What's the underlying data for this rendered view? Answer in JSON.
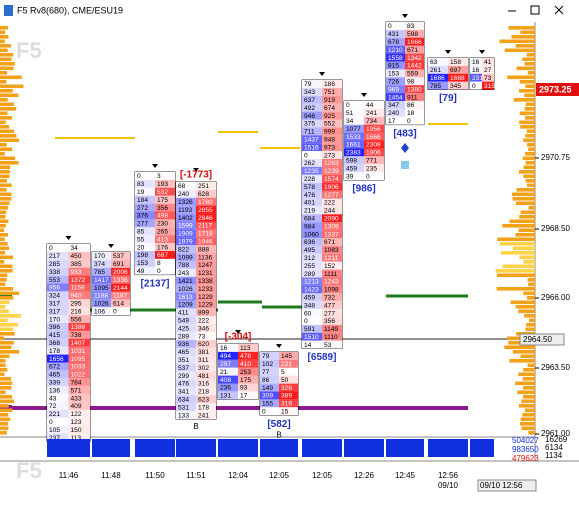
{
  "window": {
    "title": "F5 Rv8(680), CME/ESU19",
    "watermark": "F5"
  },
  "columns": [
    {
      "time": "11:46",
      "delta": "[1899]",
      "rows": [
        [
          0,
          34
        ],
        [
          217,
          450
        ],
        [
          285,
          385
        ],
        [
          338,
          933
        ],
        [
          553,
          1372
        ],
        [
          956,
          1159
        ],
        [
          324,
          940
        ],
        [
          317,
          295
        ],
        [
          317,
          216
        ],
        [
          170,
          556
        ],
        [
          396,
          1388
        ],
        [
          415,
          738
        ],
        [
          368,
          1407
        ],
        [
          178,
          1031
        ],
        [
          1656,
          1095
        ],
        [
          672,
          1033
        ],
        [
          465,
          1022
        ],
        [
          339,
          784
        ],
        [
          136,
          571
        ],
        [
          43,
          433
        ],
        [
          72,
          409
        ],
        [
          221,
          122
        ],
        [
          0,
          123
        ],
        [
          105,
          150
        ],
        [
          237,
          113
        ]
      ]
    },
    {
      "time": "11:48",
      "rows": [
        [
          170,
          537
        ],
        [
          374,
          691
        ],
        [
          785,
          2006
        ],
        [
          1417,
          1336
        ],
        [
          1095,
          2144
        ],
        [
          1188,
          1187
        ],
        [
          1026,
          614
        ],
        [
          106,
          0
        ]
      ]
    },
    {
      "time": "11:50",
      "delta": "[2137]",
      "rows": [
        [
          0,
          3
        ],
        [
          83,
          193
        ],
        [
          19,
          532
        ],
        [
          184,
          175
        ],
        [
          272,
          356
        ],
        [
          376,
          498
        ],
        [
          277,
          230
        ],
        [
          85,
          265
        ],
        [
          55,
          413
        ],
        [
          20,
          176
        ],
        [
          198,
          687
        ],
        [
          153,
          8
        ],
        [
          49,
          0
        ]
      ]
    },
    {
      "time": "11:51",
      "delta": "[-1773]",
      "marker": "B",
      "rows": [
        [
          68,
          251
        ],
        [
          240,
          628
        ],
        [
          1326,
          1780
        ],
        [
          1193,
          2855
        ],
        [
          1402,
          2846
        ],
        [
          1599,
          2117
        ],
        [
          1909,
          1718
        ],
        [
          1979,
          1946
        ],
        [
          822,
          888
        ],
        [
          1099,
          1136
        ],
        [
          788,
          1247
        ],
        [
          243,
          1231
        ],
        [
          1421,
          1338
        ],
        [
          1026,
          1233
        ],
        [
          1613,
          1229
        ],
        [
          1209,
          1229
        ],
        [
          411,
          899
        ],
        [
          549,
          222
        ],
        [
          425,
          346
        ],
        [
          289,
          73
        ],
        [
          936,
          620
        ],
        [
          465,
          381
        ],
        [
          351,
          311
        ],
        [
          537,
          302
        ],
        [
          299,
          481
        ],
        [
          476,
          316
        ],
        [
          341,
          218
        ],
        [
          634,
          623
        ],
        [
          531,
          178
        ],
        [
          133,
          241
        ]
      ]
    },
    {
      "time": "12:04",
      "delta": "[-304]",
      "rows": [
        [
          16,
          113
        ],
        [
          494,
          478
        ],
        [
          297,
          410
        ],
        [
          21,
          253
        ],
        [
          408,
          175
        ],
        [
          236,
          93
        ],
        [
          131,
          17
        ]
      ]
    },
    {
      "time": "12:05",
      "delta": "[582]",
      "marker": "B",
      "rows": [
        [
          79,
          145
        ],
        [
          102,
          221
        ],
        [
          77,
          5
        ],
        [
          86,
          50
        ],
        [
          149,
          326
        ],
        [
          309,
          389
        ],
        [
          155,
          319
        ],
        [
          0,
          15
        ]
      ]
    },
    {
      "time": "12:05",
      "delta": "[6589]",
      "rows": [
        [
          79,
          186
        ],
        [
          343,
          751
        ],
        [
          637,
          919
        ],
        [
          492,
          674
        ],
        [
          946,
          925
        ],
        [
          375,
          552
        ],
        [
          711,
          999
        ],
        [
          1437,
          948
        ],
        [
          1516,
          973
        ],
        [
          0,
          273
        ],
        [
          262,
          1263
        ],
        [
          1235,
          1239
        ],
        [
          228,
          1574
        ],
        [
          578,
          1906
        ],
        [
          476,
          1277
        ],
        [
          401,
          222
        ],
        [
          219,
          244
        ],
        [
          684,
          2090
        ],
        [
          984,
          1309
        ],
        [
          1060,
          1337
        ],
        [
          636,
          671
        ],
        [
          495,
          1083
        ],
        [
          312,
          1211
        ],
        [
          255,
          152
        ],
        [
          289,
          1111
        ],
        [
          1213,
          1243
        ],
        [
          1423,
          1098
        ],
        [
          459,
          732
        ],
        [
          348,
          477
        ],
        [
          60,
          277
        ],
        [
          0,
          356
        ],
        [
          591,
          1149
        ],
        [
          1510,
          1110
        ],
        [
          14,
          53
        ]
      ]
    },
    {
      "time": "12:26",
      "delta": "[986]",
      "rows": [
        [
          0,
          44
        ],
        [
          51,
          241
        ],
        [
          34,
          734
        ],
        [
          1077,
          1956
        ],
        [
          1533,
          1666
        ],
        [
          1661,
          2308
        ],
        [
          2383,
          1906
        ],
        [
          598,
          771
        ],
        [
          459,
          235
        ],
        [
          39,
          0
        ]
      ]
    },
    {
      "time": "12:45",
      "delta": "[483]",
      "rows": [
        [
          0,
          83
        ],
        [
          431,
          598
        ],
        [
          678,
          1666
        ],
        [
          1210,
          671
        ],
        [
          1558,
          1342
        ],
        [
          815,
          1442
        ],
        [
          153,
          559
        ],
        [
          726,
          98
        ],
        [
          969,
          1380
        ],
        [
          1454,
          911
        ],
        [
          347,
          86
        ],
        [
          240,
          18
        ],
        [
          17,
          0
        ]
      ]
    },
    {
      "time": "12:56",
      "date": "09/10",
      "delta": "[79]",
      "rows": [
        [
          63,
          158
        ],
        [
          261,
          697
        ],
        [
          1686,
          1688
        ],
        [
          785,
          345
        ]
      ]
    },
    {
      "rows": [
        [
          16,
          41
        ],
        [
          16,
          27
        ],
        [
          231,
          73
        ],
        [
          0,
          315
        ]
      ]
    }
  ],
  "price_axis": {
    "labels": [
      "2970.75",
      "2968.50",
      "2966.00",
      "2963.50",
      "2961.00"
    ],
    "last_price": "2973.25",
    "cursor_price": "2964.50"
  },
  "footer": {
    "cursor_time": "09/10 12:56",
    "totals": [
      "504027",
      "983650",
      "479623"
    ],
    "counts": [
      "16269",
      "6134",
      "1134"
    ]
  }
}
